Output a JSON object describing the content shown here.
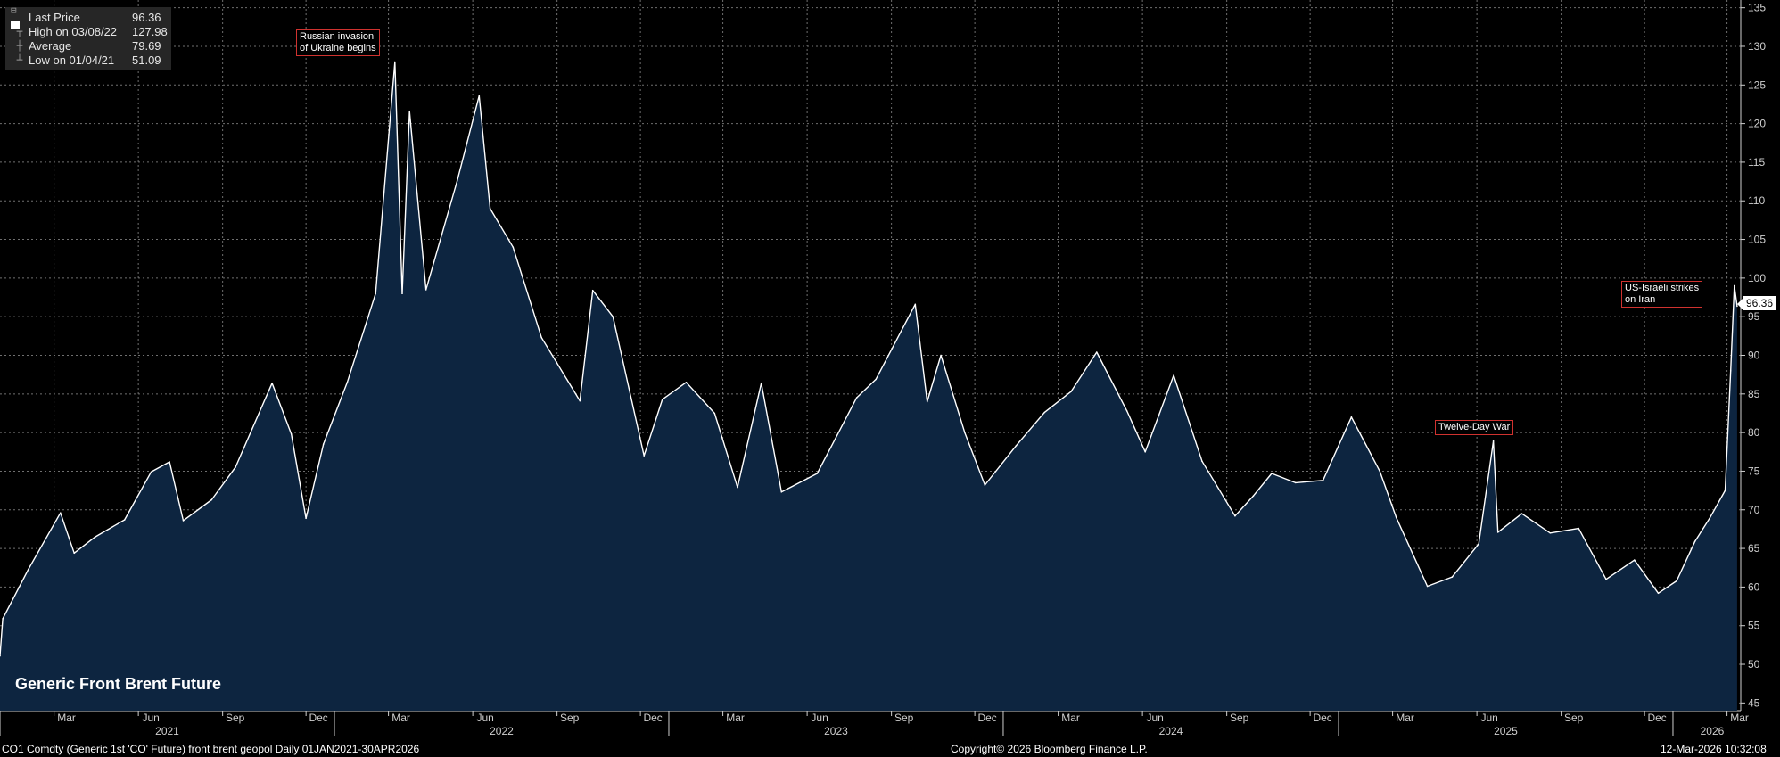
{
  "legend": {
    "last_price_label": "Last Price",
    "last_price_value": "96.36",
    "high_label": "High on 03/08/22",
    "high_value": "127.98",
    "average_label": "Average",
    "average_value": "79.69",
    "low_label": "Low on 01/04/21",
    "low_value": "51.09"
  },
  "annotations": {
    "ukraine": "Russian invasion\nof Ukraine begins",
    "twelve_day": "Twelve-Day War",
    "iran": "US-Israeli strikes\non Iran"
  },
  "last_tag": "96.36",
  "footer": {
    "left": "CO1 Comdty (Generic 1st 'CO' Future) front brent geopol Daily 01JAN2021-30APR2026",
    "center": "Copyright© 2026 Bloomberg Finance L.P.",
    "right": "12-Mar-2026 10:32:08"
  },
  "colors": {
    "line": "#ffffff",
    "fill": "#0d2540",
    "grid": "#6f6f6f",
    "annotation_border": "#d0322f",
    "background": "#000000"
  },
  "chart_data": {
    "type": "area",
    "title": "Generic Front Brent Future",
    "xlabel": "",
    "ylabel": "",
    "ylim": [
      44,
      136
    ],
    "y_ticks": [
      45,
      50,
      55,
      60,
      65,
      70,
      75,
      80,
      85,
      90,
      95,
      100,
      105,
      110,
      115,
      120,
      125,
      130,
      135
    ],
    "month_ticks": [
      "Mar",
      "Jun",
      "Sep",
      "Dec",
      "Mar",
      "Jun",
      "Sep",
      "Dec",
      "Mar",
      "Jun",
      "Sep",
      "Dec",
      "Mar",
      "Jun",
      "Sep",
      "Dec",
      "Mar",
      "Jun",
      "Sep",
      "Dec",
      "Mar"
    ],
    "year_labels": [
      "2021",
      "2022",
      "2023",
      "2024",
      "2025",
      "2026"
    ],
    "grid": true,
    "series": [
      {
        "name": "Last Price",
        "x": [
          "2021-01-01",
          "2021-01-04",
          "2021-02-01",
          "2021-03-08",
          "2021-03-23",
          "2021-04-15",
          "2021-05-17",
          "2021-06-15",
          "2021-07-05",
          "2021-07-20",
          "2021-08-20",
          "2021-09-15",
          "2021-10-25",
          "2021-11-15",
          "2021-12-01",
          "2021-12-20",
          "2022-01-15",
          "2022-02-15",
          "2022-03-08",
          "2022-03-16",
          "2022-03-24",
          "2022-04-11",
          "2022-05-15",
          "2022-06-08",
          "2022-06-20",
          "2022-07-15",
          "2022-08-15",
          "2022-09-26",
          "2022-10-10",
          "2022-11-01",
          "2022-12-05",
          "2022-12-25",
          "2023-01-20",
          "2023-02-20",
          "2023-03-17",
          "2023-04-12",
          "2023-05-04",
          "2023-06-12",
          "2023-07-25",
          "2023-08-15",
          "2023-09-27",
          "2023-10-10",
          "2023-10-25",
          "2023-11-20",
          "2023-12-12",
          "2024-01-15",
          "2024-02-15",
          "2024-03-15",
          "2024-04-12",
          "2024-05-15",
          "2024-06-04",
          "2024-07-05",
          "2024-08-05",
          "2024-09-10",
          "2024-09-30",
          "2024-10-20",
          "2024-11-15",
          "2024-12-15",
          "2025-01-15",
          "2025-02-15",
          "2025-03-05",
          "2025-04-08",
          "2025-05-05",
          "2025-06-03",
          "2025-06-19",
          "2025-06-24",
          "2025-07-20",
          "2025-08-20",
          "2025-09-20",
          "2025-10-20",
          "2025-11-20",
          "2025-12-16",
          "2026-01-05",
          "2026-01-25",
          "2026-02-10",
          "2026-02-27",
          "2026-03-05",
          "2026-03-09",
          "2026-03-12"
        ],
        "y": [
          51.09,
          55.9,
          62.3,
          69.6,
          64.4,
          66.5,
          68.7,
          74.9,
          76.2,
          68.6,
          71.3,
          75.5,
          86.4,
          79.8,
          68.9,
          78.5,
          86.5,
          98.0,
          127.98,
          98.0,
          121.6,
          98.5,
          112.6,
          123.6,
          109.0,
          104.0,
          92.3,
          84.1,
          98.4,
          95.0,
          77.0,
          84.3,
          86.5,
          82.5,
          72.9,
          86.4,
          72.3,
          74.7,
          84.5,
          86.9,
          96.6,
          84.0,
          90.0,
          80.0,
          73.2,
          78.3,
          82.6,
          85.3,
          90.4,
          82.8,
          77.5,
          87.4,
          76.3,
          69.2,
          71.8,
          74.7,
          73.5,
          73.8,
          82.0,
          75.0,
          69.0,
          60.1,
          61.3,
          65.6,
          78.9,
          67.1,
          69.5,
          67.0,
          67.6,
          61.0,
          63.5,
          59.2,
          60.8,
          65.9,
          68.9,
          72.5,
          88.0,
          99.0,
          96.36
        ]
      }
    ]
  }
}
